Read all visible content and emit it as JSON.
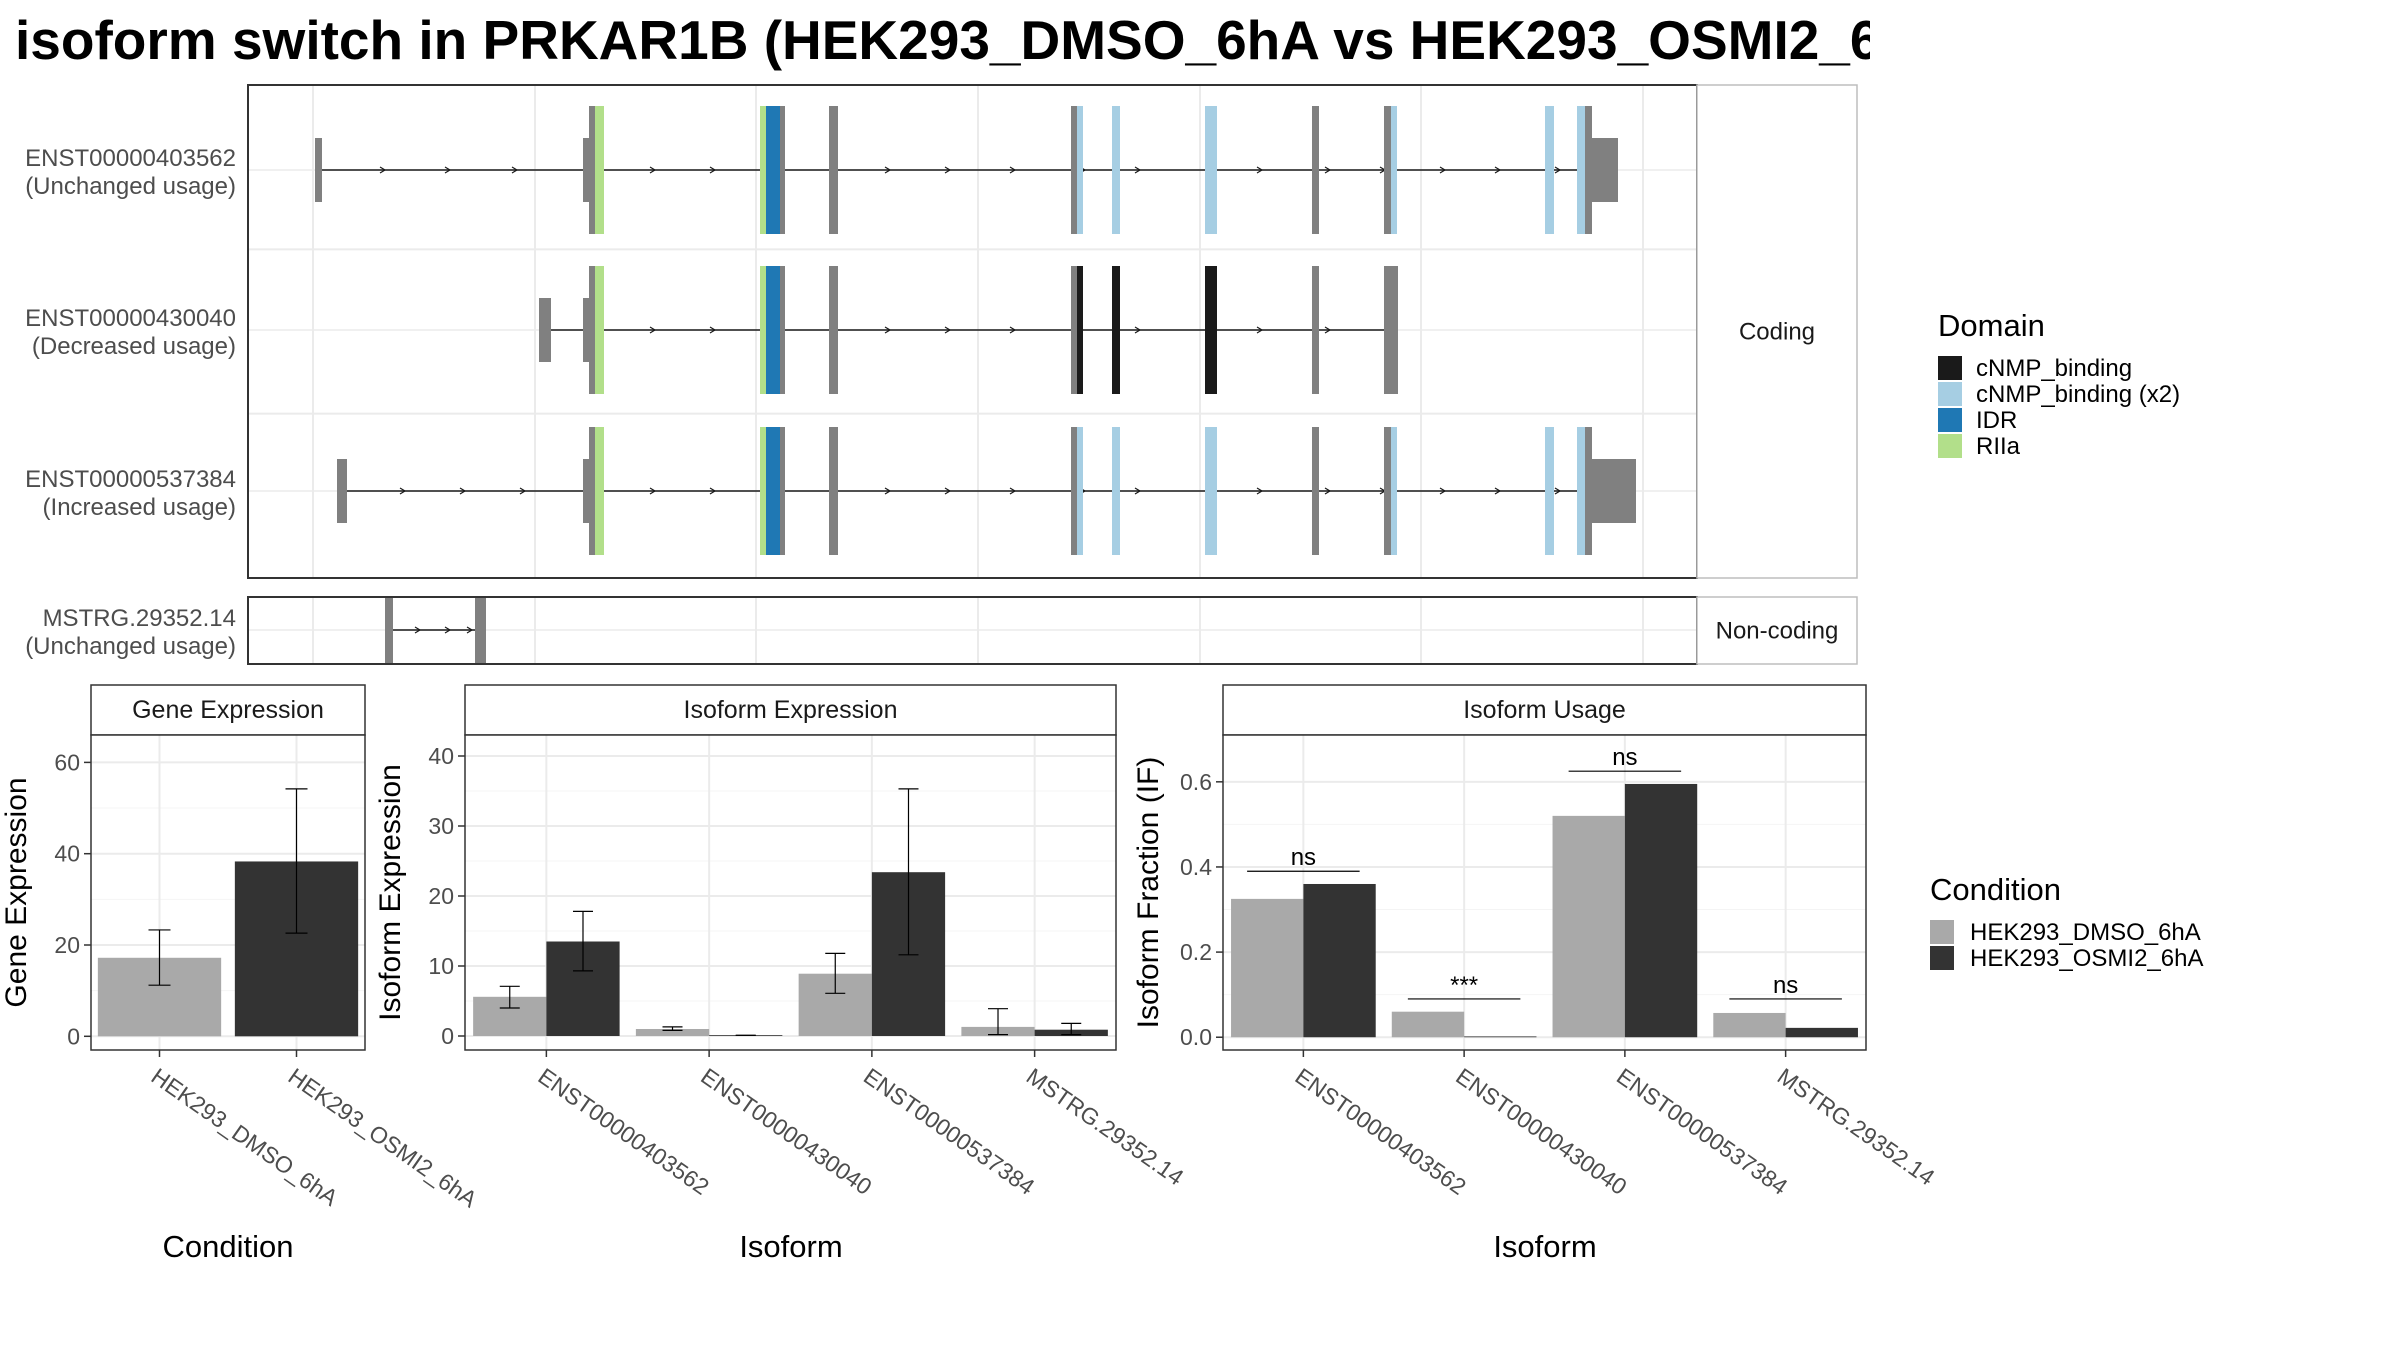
{
  "title": "isoform switch in PRKAR1B (HEK293_DMSO_6hA vs HEK293_OSMI2_6",
  "colors": {
    "exon": "#808080",
    "cNMP_binding": "#1a1a1a",
    "cNMP_binding_x2": "#a6cee3",
    "IDR": "#1f78b4",
    "RIIa": "#b2df8a",
    "cond1": "#a9a9a9",
    "cond2": "#333333"
  },
  "structure": {
    "facets": [
      "Coding",
      "Non-coding"
    ],
    "legend_title": "Domain",
    "legend": [
      {
        "label": "cNMP_binding",
        "color": "#1a1a1a"
      },
      {
        "label": "cNMP_binding (x2)",
        "color": "#a6cee3"
      },
      {
        "label": "IDR",
        "color": "#1f78b4"
      },
      {
        "label": "RIIa",
        "color": "#b2df8a"
      }
    ],
    "tracks": [
      {
        "id": "ENST00000403562",
        "status": "(Unchanged usage)"
      },
      {
        "id": "ENST00000430040",
        "status": "(Decreased usage)"
      },
      {
        "id": "ENST00000537384",
        "status": "(Increased usage)"
      },
      {
        "id": "MSTRG.29352.14",
        "status": "(Unchanged usage)"
      }
    ]
  },
  "condition_legend": {
    "title": "Condition",
    "items": [
      {
        "label": "HEK293_DMSO_6hA",
        "color": "#a9a9a9"
      },
      {
        "label": "HEK293_OSMI2_6hA",
        "color": "#333333"
      }
    ]
  },
  "chart_data": [
    {
      "type": "bar",
      "title": "Gene Expression",
      "xlabel": "Condition",
      "ylabel": "Gene Expression",
      "ylim": [
        -3,
        66
      ],
      "yticks": [
        0,
        20,
        40,
        60
      ],
      "categories": [
        "HEK293_DMSO_6hA",
        "HEK293_OSMI2_6hA"
      ],
      "values": [
        17.2,
        38.3
      ],
      "errors": [
        [
          11.2,
          23.3
        ],
        [
          22.6,
          54.2
        ]
      ],
      "colors": [
        "#a9a9a9",
        "#333333"
      ]
    },
    {
      "type": "bar",
      "title": "Isoform Expression",
      "xlabel": "Isoform",
      "ylabel": "Isoform Expression",
      "ylim": [
        -2,
        43
      ],
      "yticks": [
        0,
        10,
        20,
        30,
        40
      ],
      "categories": [
        "ENST00000403562",
        "ENST00000430040",
        "ENST00000537384",
        "MSTRG.29352.14"
      ],
      "series": [
        {
          "name": "HEK293_DMSO_6hA",
          "values": [
            5.6,
            1.0,
            8.9,
            1.3
          ],
          "errors": [
            [
              4.0,
              7.1
            ],
            [
              0.8,
              1.3
            ],
            [
              6.1,
              11.8
            ],
            [
              0.2,
              3.9
            ]
          ]
        },
        {
          "name": "HEK293_OSMI2_6hA",
          "values": [
            13.5,
            0.1,
            23.4,
            0.9
          ],
          "errors": [
            [
              9.3,
              17.8
            ],
            [
              0.1,
              0.1
            ],
            [
              11.6,
              35.3
            ],
            [
              0.2,
              1.8
            ]
          ]
        }
      ]
    },
    {
      "type": "bar",
      "title": "Isoform Usage",
      "xlabel": "Isoform",
      "ylabel": "Isoform Fraction (IF)",
      "ylim": [
        -0.03,
        0.71
      ],
      "yticks": [
        0.0,
        0.2,
        0.4,
        0.6
      ],
      "ytick_labels": [
        "0.0",
        "0.2",
        "0.4",
        "0.6"
      ],
      "categories": [
        "ENST00000403562",
        "ENST00000430040",
        "ENST00000537384",
        "MSTRG.29352.14"
      ],
      "series": [
        {
          "name": "HEK293_DMSO_6hA",
          "values": [
            0.325,
            0.06,
            0.52,
            0.057
          ]
        },
        {
          "name": "HEK293_OSMI2_6hA",
          "values": [
            0.36,
            0.0,
            0.595,
            0.022
          ]
        }
      ],
      "annotations": [
        {
          "label": "ns",
          "y": 0.39
        },
        {
          "label": "***",
          "y": 0.09
        },
        {
          "label": "ns",
          "y": 0.625
        },
        {
          "label": "ns",
          "y": 0.09
        }
      ]
    }
  ]
}
